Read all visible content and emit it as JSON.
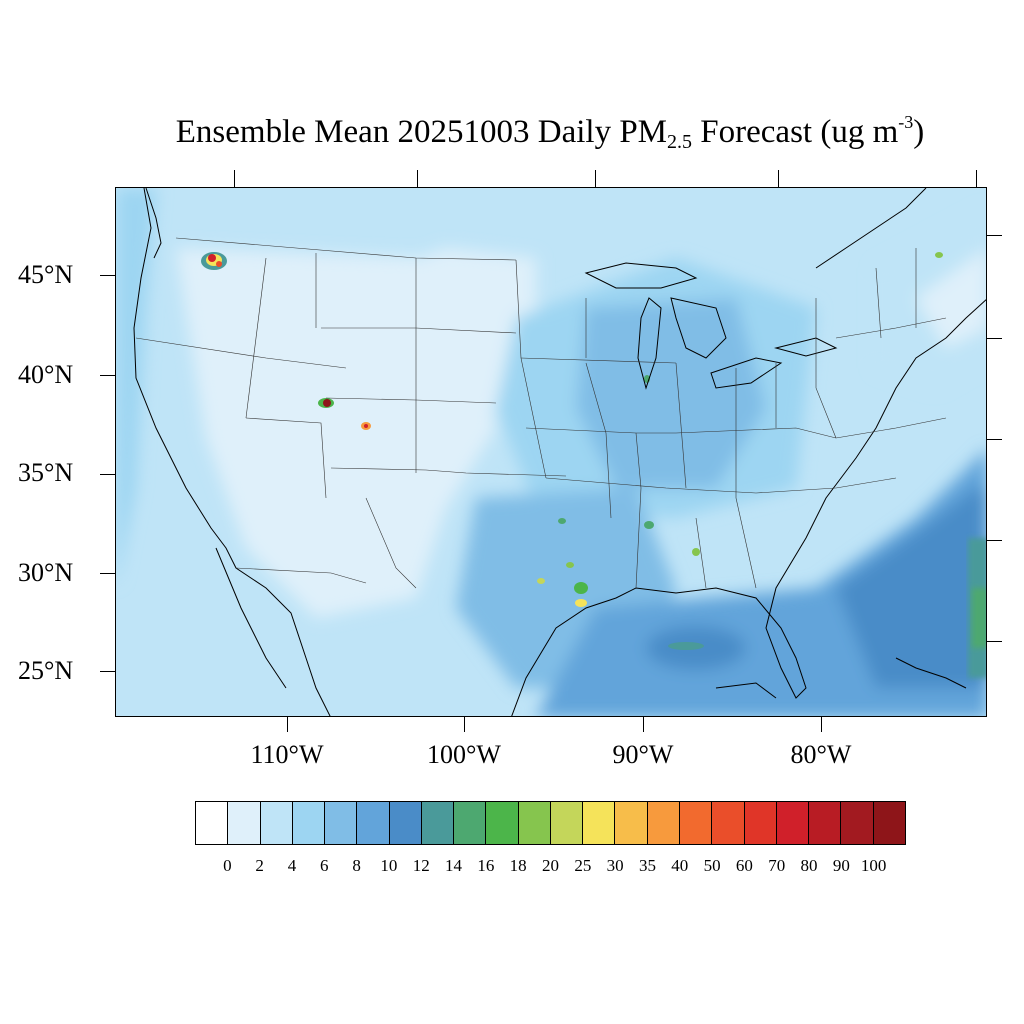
{
  "title": {
    "prefix": "Ensemble Mean 20251003 Daily PM",
    "subscript": "2.5",
    "middle": " Forecast (ug m",
    "superscript": "-3",
    "suffix": ")"
  },
  "map": {
    "lat_labels": [
      "45°N",
      "40°N",
      "35°N",
      "30°N",
      "25°N"
    ],
    "lon_labels": [
      "110°W",
      "100°W",
      "90°W",
      "80°W"
    ]
  },
  "legend": {
    "levels": [
      "0",
      "2",
      "4",
      "6",
      "8",
      "10",
      "12",
      "14",
      "16",
      "18",
      "20",
      "25",
      "30",
      "35",
      "40",
      "50",
      "60",
      "70",
      "80",
      "90",
      "100"
    ],
    "colors": [
      "#ffffff",
      "#dff0fa",
      "#bfe4f7",
      "#9dd5f2",
      "#80bde6",
      "#62a4da",
      "#4a8cc8",
      "#4a9a9a",
      "#4da870",
      "#4cb54a",
      "#86c54e",
      "#c4d65a",
      "#f5e35a",
      "#f7bd4a",
      "#f79a3d",
      "#f26a2e",
      "#ea4e2a",
      "#e03528",
      "#d0202a",
      "#b81c24",
      "#a21a20",
      "#8e1519"
    ]
  }
}
